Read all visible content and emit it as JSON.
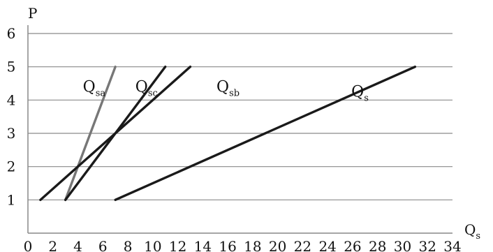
{
  "chart_data": {
    "type": "line",
    "title": "",
    "xlabel": "Q",
    "xlabel_sub": "s",
    "ylabel": "P",
    "xlim": [
      0,
      34
    ],
    "ylim": [
      0,
      6
    ],
    "x_ticks": [
      0,
      2,
      4,
      6,
      8,
      10,
      12,
      14,
      16,
      18,
      20,
      22,
      24,
      26,
      28,
      30,
      32,
      34
    ],
    "y_ticks": [
      1,
      2,
      3,
      4,
      5,
      6
    ],
    "grid": "horizontal",
    "legend": "none",
    "series": [
      {
        "name": "Q",
        "sub": "sa",
        "color": "#777777",
        "points": [
          [
            3,
            1
          ],
          [
            7,
            5
          ]
        ],
        "label_at": [
          4.4,
          4.25
        ]
      },
      {
        "name": "Q",
        "sub": "sc",
        "color": "#1a1a1a",
        "points": [
          [
            3,
            1
          ],
          [
            11,
            5
          ]
        ],
        "label_at": [
          8.6,
          4.25
        ]
      },
      {
        "name": "Q",
        "sub": "sb",
        "color": "#1a1a1a",
        "points": [
          [
            1,
            1
          ],
          [
            13,
            5
          ]
        ],
        "label_at": [
          15.1,
          4.25
        ]
      },
      {
        "name": "Q",
        "sub": "s",
        "color": "#1a1a1a",
        "points": [
          [
            7,
            1
          ],
          [
            31,
            5
          ]
        ],
        "label_at": [
          25.9,
          4.1
        ]
      }
    ]
  }
}
